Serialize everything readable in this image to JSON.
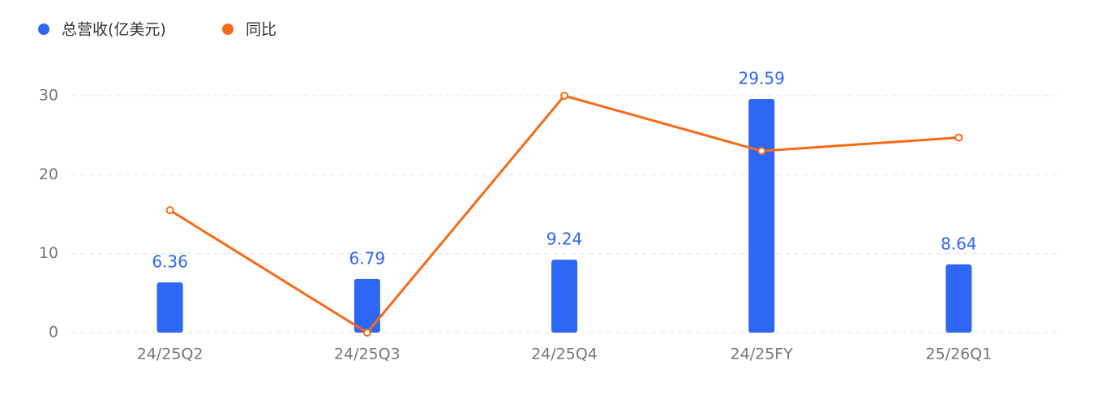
{
  "chart_data": {
    "type": "bar",
    "categories": [
      "24/25Q2",
      "24/25Q3",
      "24/25Q4",
      "24/25FY",
      "25/26Q1"
    ],
    "series": [
      {
        "name": "总营收(亿美元)",
        "type": "bar",
        "color": "#2e66f6",
        "values": [
          6.36,
          6.79,
          9.24,
          29.59,
          8.64
        ],
        "show_labels": true
      },
      {
        "name": "同比",
        "type": "line",
        "color": "#f66a18",
        "values": [
          15.5,
          0,
          30,
          23,
          24.7
        ]
      }
    ],
    "ylim": [
      0,
      30
    ],
    "yticks": [
      0,
      10,
      20,
      30
    ],
    "grid": true,
    "legend": "top-left"
  }
}
